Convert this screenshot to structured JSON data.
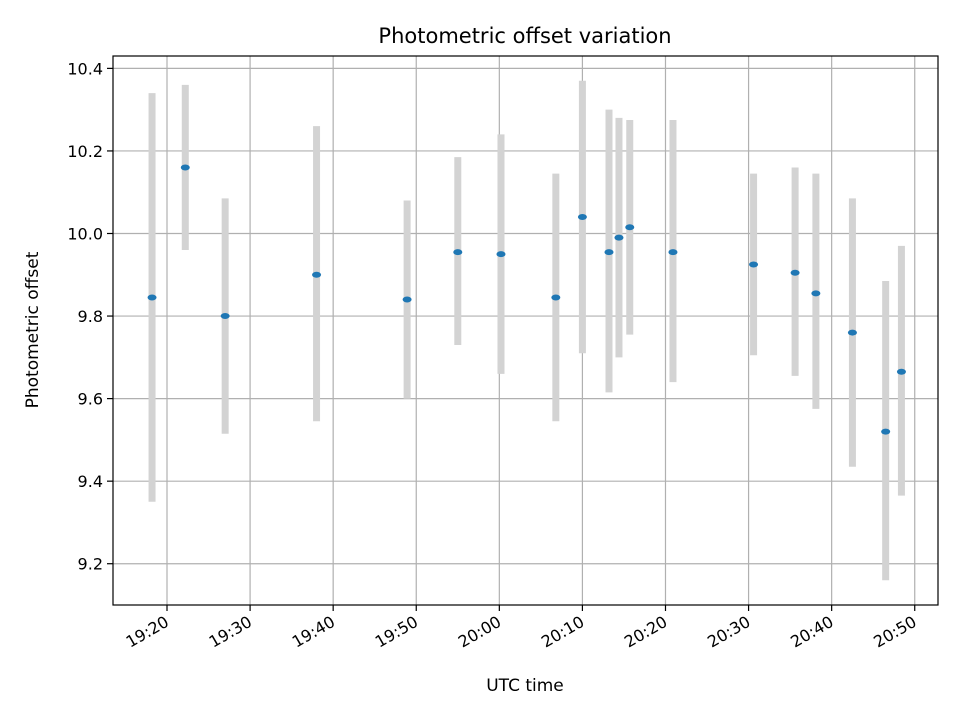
{
  "chart_data": {
    "type": "scatter",
    "title": "Photometric offset variation",
    "xlabel": "UTC time",
    "ylabel": "Photometric offset",
    "x_tick_labels": [
      "19:20",
      "19:30",
      "19:40",
      "19:50",
      "20:00",
      "20:10",
      "20:20",
      "20:30",
      "20:40",
      "20:50"
    ],
    "x_tick_minutes": [
      1160,
      1170,
      1180,
      1190,
      1200,
      1210,
      1220,
      1230,
      1240,
      1250
    ],
    "xlim_minutes": [
      1153.5,
      1252.8
    ],
    "y_ticks": [
      9.2,
      9.4,
      9.6,
      9.8,
      10.0,
      10.2,
      10.4
    ],
    "y_tick_labels": [
      "9.2",
      "9.4",
      "9.6",
      "9.8",
      "10.0",
      "10.2",
      "10.4"
    ],
    "ylim": [
      9.1,
      10.43
    ],
    "grid": true,
    "x": [
      "19:18",
      "19:22",
      "19:27",
      "19:38",
      "19:49",
      "19:55",
      "20:00",
      "20:07",
      "20:10",
      "20:13",
      "20:14",
      "20:16",
      "20:21",
      "20:31",
      "20:36",
      "20:38",
      "20:43",
      "20:47",
      "20:48"
    ],
    "x_minutes": [
      1158.2,
      1162.2,
      1167.0,
      1178.0,
      1188.9,
      1195.0,
      1200.2,
      1206.8,
      1210.0,
      1213.2,
      1214.4,
      1215.7,
      1220.9,
      1230.6,
      1235.6,
      1238.1,
      1242.5,
      1246.5,
      1248.4
    ],
    "y": [
      9.845,
      10.16,
      9.8,
      9.9,
      9.84,
      9.955,
      9.95,
      9.845,
      10.04,
      9.955,
      9.99,
      10.015,
      9.955,
      9.925,
      9.905,
      9.855,
      9.76,
      9.52,
      9.665
    ],
    "err_low": [
      9.35,
      9.96,
      9.515,
      9.545,
      9.6,
      9.73,
      9.66,
      9.545,
      9.71,
      9.615,
      9.7,
      9.755,
      9.64,
      9.705,
      9.655,
      9.575,
      9.435,
      9.16,
      9.365
    ],
    "err_high": [
      10.34,
      10.36,
      10.085,
      10.26,
      10.08,
      10.185,
      10.24,
      10.145,
      10.37,
      10.3,
      10.28,
      10.275,
      10.275,
      10.145,
      10.16,
      10.145,
      10.085,
      9.885,
      9.97
    ],
    "colors": {
      "point": "#1f77b4",
      "errorbar": "#d3d3d3",
      "grid": "#b0b0b0",
      "axes": "#000000"
    }
  }
}
